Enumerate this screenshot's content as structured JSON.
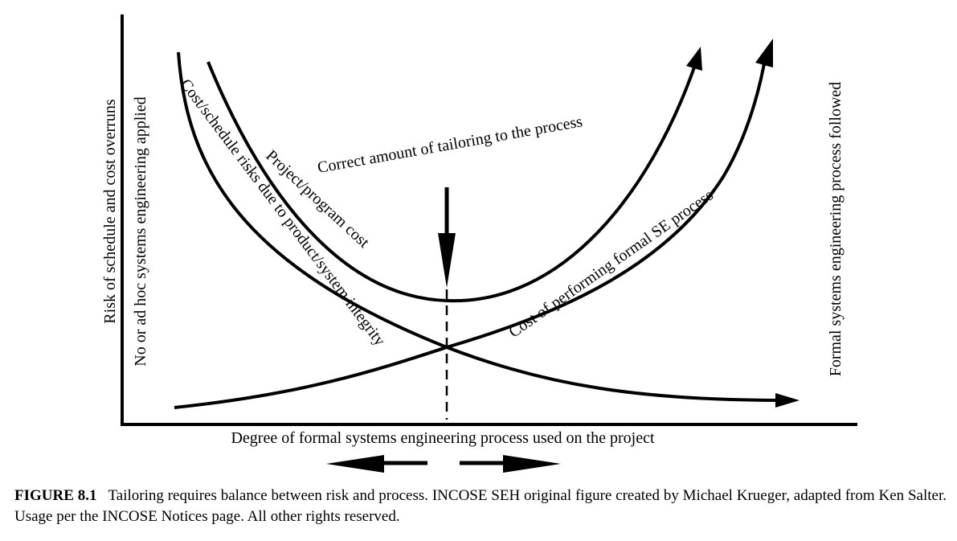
{
  "figure": {
    "y_axis_label": "Risk of schedule and cost overruns",
    "left_label": "No or ad hoc systems engineering applied",
    "right_label": "Formal systems engineering process followed",
    "x_axis_label": "Degree of formal systems engineering process used on the project",
    "optimum_label": "Correct amount of tailoring to the process",
    "curve_labels": {
      "program_cost": "Project/program cost",
      "integrity_risk": "Cost/schedule risks due to product/system integrity",
      "se_cost": "Cost of performing formal SE process"
    }
  },
  "caption": {
    "label": "FIGURE 8.1",
    "text": "Tailoring requires balance between risk and process. INCOSE SEH original figure created by Michael Krueger, adapted from Ken Salter. Usage per the INCOSE Notices page. All other rights reserved."
  }
}
